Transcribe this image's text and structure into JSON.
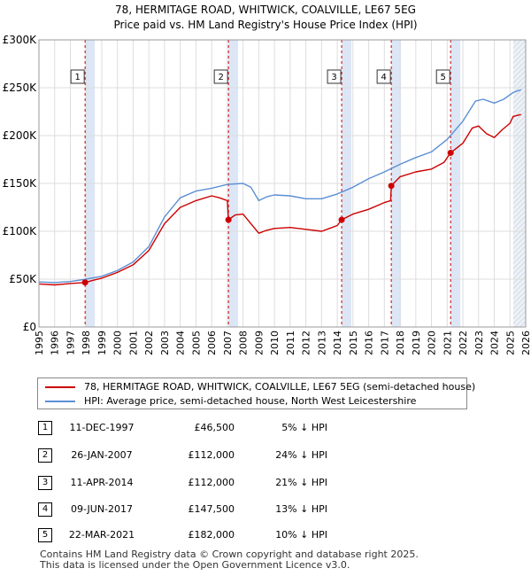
{
  "header": {
    "title_line1": "78, HERMITAGE ROAD, WHITWICK, COALVILLE, LE67 5EG",
    "title_line2": "Price paid vs. HM Land Registry's House Price Index (HPI)"
  },
  "chart_data": {
    "type": "line",
    "xlim": [
      1995,
      2026
    ],
    "ylim": [
      0,
      300000
    ],
    "x_ticks": [
      "1995",
      "1996",
      "1997",
      "1998",
      "1999",
      "2000",
      "2001",
      "2002",
      "2003",
      "2004",
      "2005",
      "2006",
      "2007",
      "2008",
      "2009",
      "2010",
      "2011",
      "2012",
      "2013",
      "2014",
      "2015",
      "2016",
      "2017",
      "2018",
      "2019",
      "2020",
      "2021",
      "2022",
      "2023",
      "2024",
      "2025",
      "2026"
    ],
    "y_ticks": [
      {
        "value": 0,
        "label": "£0"
      },
      {
        "value": 50000,
        "label": "£50K"
      },
      {
        "value": 100000,
        "label": "£100K"
      },
      {
        "value": 150000,
        "label": "£150K"
      },
      {
        "value": 200000,
        "label": "£200K"
      },
      {
        "value": 250000,
        "label": "£250K"
      },
      {
        "value": 300000,
        "label": "£300K"
      }
    ],
    "grid": true,
    "colors": {
      "property": "#cc0000",
      "hpi": "#5b8fd4",
      "band": "#dde6f5",
      "vline": "#cc0000",
      "grid": "#dddddd"
    },
    "forecast_from": 2025.2,
    "series": [
      {
        "name": "78, HERMITAGE ROAD, WHITWICK, COALVILLE, LE67 5EG (semi-detached house)",
        "color": "#cc0000",
        "points": [
          [
            1995,
            45000
          ],
          [
            1996,
            44000
          ],
          [
            1997,
            45500
          ],
          [
            1997.94,
            46500
          ],
          [
            1998.5,
            49000
          ],
          [
            1999,
            51000
          ],
          [
            2000,
            57000
          ],
          [
            2001,
            65000
          ],
          [
            2002,
            80000
          ],
          [
            2003,
            108000
          ],
          [
            2004,
            125000
          ],
          [
            2005,
            132000
          ],
          [
            2006,
            137000
          ],
          [
            2006.5,
            135000
          ],
          [
            2007.0,
            132000
          ],
          [
            2007.07,
            112000
          ],
          [
            2007.5,
            117000
          ],
          [
            2008,
            118000
          ],
          [
            2008.5,
            108000
          ],
          [
            2009,
            98000
          ],
          [
            2009.5,
            101000
          ],
          [
            2010,
            103000
          ],
          [
            2011,
            104000
          ],
          [
            2012,
            102000
          ],
          [
            2013,
            100000
          ],
          [
            2013.5,
            103000
          ],
          [
            2014.0,
            106000
          ],
          [
            2014.28,
            112000
          ],
          [
            2015,
            118000
          ],
          [
            2016,
            123000
          ],
          [
            2017.0,
            130000
          ],
          [
            2017.4,
            132000
          ],
          [
            2017.44,
            147500
          ],
          [
            2018,
            157000
          ],
          [
            2019,
            162000
          ],
          [
            2020,
            165000
          ],
          [
            2020.8,
            172000
          ],
          [
            2021.22,
            182000
          ],
          [
            2022,
            192000
          ],
          [
            2022.6,
            208000
          ],
          [
            2023,
            210000
          ],
          [
            2023.5,
            202000
          ],
          [
            2024,
            198000
          ],
          [
            2024.5,
            206000
          ],
          [
            2025.0,
            213000
          ],
          [
            2025.2,
            220000
          ],
          [
            2025.7,
            222000
          ]
        ]
      },
      {
        "name": "HPI: Average price, semi-detached house, North West Leicestershire",
        "color": "#5b8fd4",
        "points": [
          [
            1995,
            47000
          ],
          [
            1996,
            46500
          ],
          [
            1997,
            47500
          ],
          [
            1998,
            50000
          ],
          [
            1999,
            53000
          ],
          [
            2000,
            59000
          ],
          [
            2001,
            68000
          ],
          [
            2002,
            84000
          ],
          [
            2003,
            115000
          ],
          [
            2004,
            135000
          ],
          [
            2005,
            142000
          ],
          [
            2006,
            145000
          ],
          [
            2007,
            149000
          ],
          [
            2008,
            150000
          ],
          [
            2008.5,
            146000
          ],
          [
            2009,
            132000
          ],
          [
            2009.5,
            136000
          ],
          [
            2010,
            138000
          ],
          [
            2011,
            137000
          ],
          [
            2012,
            134000
          ],
          [
            2013,
            134000
          ],
          [
            2014,
            139000
          ],
          [
            2015,
            146000
          ],
          [
            2016,
            155000
          ],
          [
            2017,
            162000
          ],
          [
            2018,
            170000
          ],
          [
            2019,
            177000
          ],
          [
            2020,
            183000
          ],
          [
            2021,
            196000
          ],
          [
            2022,
            215000
          ],
          [
            2022.8,
            236000
          ],
          [
            2023.3,
            238000
          ],
          [
            2024,
            234000
          ],
          [
            2024.6,
            238000
          ],
          [
            2025.2,
            245000
          ],
          [
            2025.7,
            248000
          ]
        ]
      }
    ],
    "sales": [
      {
        "num": "1",
        "x": 1997.94,
        "value": 46500
      },
      {
        "num": "2",
        "x": 2007.07,
        "value": 112000
      },
      {
        "num": "3",
        "x": 2014.28,
        "value": 112000
      },
      {
        "num": "4",
        "x": 2017.44,
        "value": 147500
      },
      {
        "num": "5",
        "x": 2021.22,
        "value": 182000
      }
    ]
  },
  "legend": {
    "property_label": "78, HERMITAGE ROAD, WHITWICK, COALVILLE, LE67 5EG (semi-detached house)",
    "hpi_label": "HPI: Average price, semi-detached house, North West Leicestershire"
  },
  "transactions": [
    {
      "num": "1",
      "date": "11-DEC-1997",
      "price": "£46,500",
      "hpi": "5% ↓ HPI"
    },
    {
      "num": "2",
      "date": "26-JAN-2007",
      "price": "£112,000",
      "hpi": "24% ↓ HPI"
    },
    {
      "num": "3",
      "date": "11-APR-2014",
      "price": "£112,000",
      "hpi": "21% ↓ HPI"
    },
    {
      "num": "4",
      "date": "09-JUN-2017",
      "price": "£147,500",
      "hpi": "13% ↓ HPI"
    },
    {
      "num": "5",
      "date": "22-MAR-2021",
      "price": "£182,000",
      "hpi": "10% ↓ HPI"
    }
  ],
  "footer": {
    "line1": "Contains HM Land Registry data © Crown copyright and database right 2025.",
    "line2": "This data is licensed under the Open Government Licence v3.0."
  }
}
